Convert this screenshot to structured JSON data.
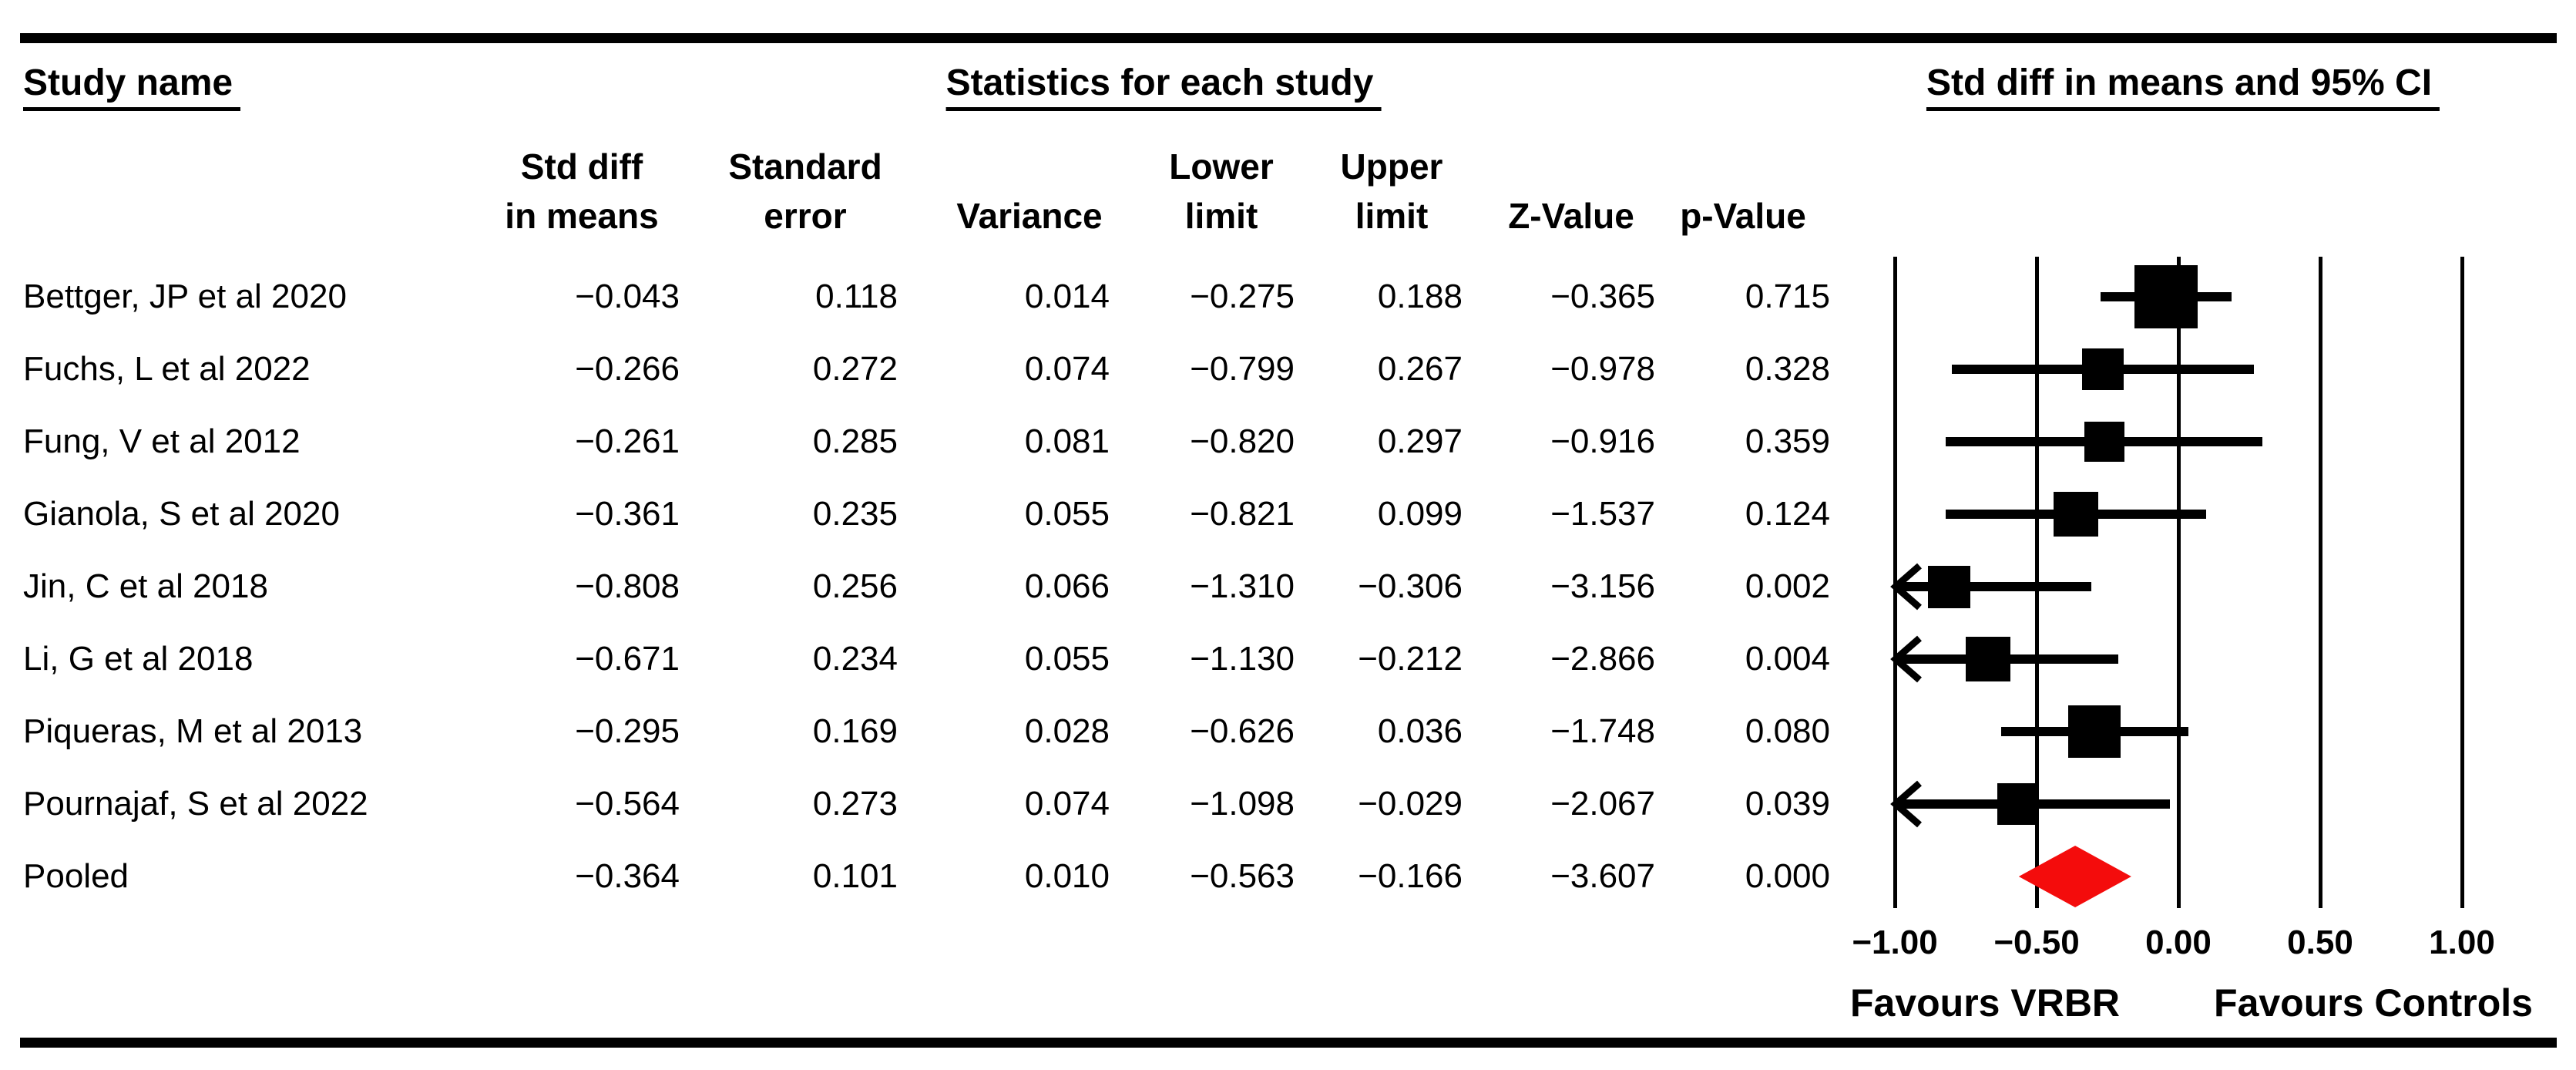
{
  "figure": {
    "title_left": "Study name",
    "title_center": "Statistics for each study",
    "title_right": "Std diff in means and 95% CI",
    "columns": [
      {
        "label": "Std diff\nin means"
      },
      {
        "label": "Standard\nerror"
      },
      {
        "label": "Variance"
      },
      {
        "label": "Lower\nlimit"
      },
      {
        "label": "Upper\nlimit"
      },
      {
        "label": "Z-Value"
      },
      {
        "label": "p-Value"
      }
    ],
    "footer_left": "Favours VRBR",
    "footer_right": "Favours Controls",
    "marker_color": "#000000",
    "diamond_color": "#F40C0C"
  },
  "chart_data": {
    "type": "forest",
    "title": "Std diff in means and 95% CI",
    "xlim": [
      -1.0,
      1.0
    ],
    "x_ticks": [
      -1.0,
      -0.5,
      0.0,
      0.5,
      1.0
    ],
    "x_tick_labels": [
      "−1.00",
      "−0.50",
      "0.00",
      "0.50",
      "1.00"
    ],
    "grid": "vertical-lines-at-ticks",
    "clip_arrows": "shown when CI limit exceeds axis range",
    "studies": [
      {
        "name": "Bettger, JP et al 2020",
        "std_diff": -0.043,
        "se": 0.118,
        "variance": 0.014,
        "lower": -0.275,
        "upper": 0.188,
        "z": -0.365,
        "p": 0.715,
        "pooled": false
      },
      {
        "name": "Fuchs, L et al 2022",
        "std_diff": -0.266,
        "se": 0.272,
        "variance": 0.074,
        "lower": -0.799,
        "upper": 0.267,
        "z": -0.978,
        "p": 0.328,
        "pooled": false
      },
      {
        "name": "Fung, V et al 2012",
        "std_diff": -0.261,
        "se": 0.285,
        "variance": 0.081,
        "lower": -0.82,
        "upper": 0.297,
        "z": -0.916,
        "p": 0.359,
        "pooled": false
      },
      {
        "name": "Gianola, S et al 2020",
        "std_diff": -0.361,
        "se": 0.235,
        "variance": 0.055,
        "lower": -0.821,
        "upper": 0.099,
        "z": -1.537,
        "p": 0.124,
        "pooled": false
      },
      {
        "name": "Jin, C et al 2018",
        "std_diff": -0.808,
        "se": 0.256,
        "variance": 0.066,
        "lower": -1.31,
        "upper": -0.306,
        "z": -3.156,
        "p": 0.002,
        "pooled": false
      },
      {
        "name": "Li, G et al 2018",
        "std_diff": -0.671,
        "se": 0.234,
        "variance": 0.055,
        "lower": -1.13,
        "upper": -0.212,
        "z": -2.866,
        "p": 0.004,
        "pooled": false
      },
      {
        "name": "Piqueras, M et al 2013",
        "std_diff": -0.295,
        "se": 0.169,
        "variance": 0.028,
        "lower": -0.626,
        "upper": 0.036,
        "z": -1.748,
        "p": 0.08,
        "pooled": false
      },
      {
        "name": "Pournajaf, S et al 2022",
        "std_diff": -0.564,
        "se": 0.273,
        "variance": 0.074,
        "lower": -1.098,
        "upper": -0.029,
        "z": -2.067,
        "p": 0.039,
        "pooled": false
      },
      {
        "name": "Pooled",
        "std_diff": -0.364,
        "se": 0.101,
        "variance": 0.01,
        "lower": -0.563,
        "upper": -0.166,
        "z": -3.607,
        "p": 0.0,
        "pooled": true
      }
    ]
  }
}
